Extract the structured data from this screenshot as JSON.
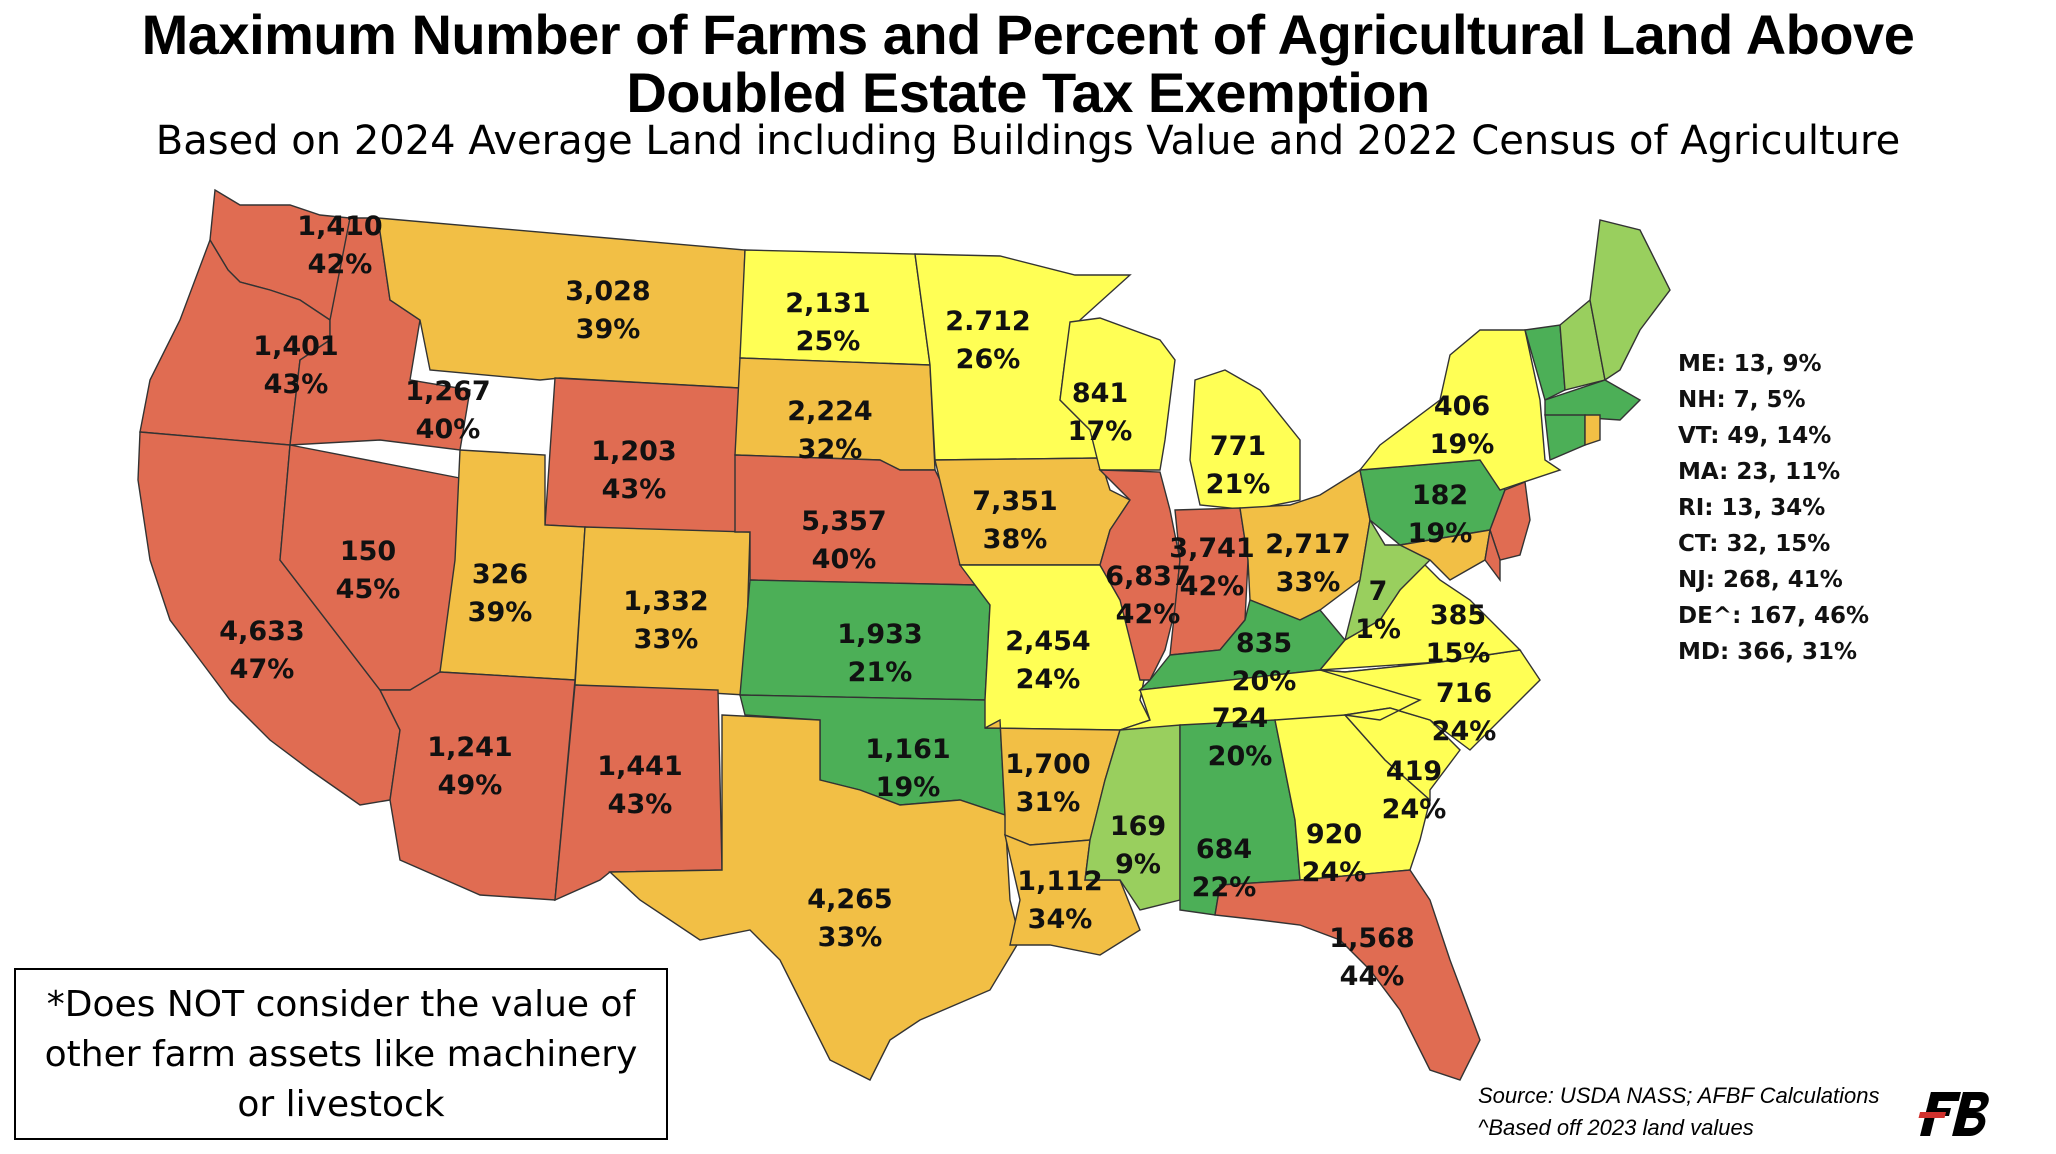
{
  "title_line1": "Maximum Number of Farms and Percent of Agricultural Land Above",
  "title_line2": "Doubled Estate Tax Exemption",
  "subtitle": "Based on 2024 Average Land including Buildings Value and 2022 Census of Agriculture",
  "colors": {
    "red": "#e06c52",
    "orange": "#f2bf45",
    "yellow": "#ffff55",
    "dark_green": "#4caf57",
    "light_green": "#99cf5e"
  },
  "states": [
    {
      "id": "WA",
      "farms": "1,410",
      "pct": "42%",
      "color": "red"
    },
    {
      "id": "OR",
      "farms": "1,401",
      "pct": "43%",
      "color": "red"
    },
    {
      "id": "CA",
      "farms": "4,633",
      "pct": "47%",
      "color": "red"
    },
    {
      "id": "NV",
      "farms": "150",
      "pct": "45%",
      "color": "red"
    },
    {
      "id": "ID",
      "farms": "1,267",
      "pct": "40%",
      "color": "red"
    },
    {
      "id": "MT",
      "farms": "3,028",
      "pct": "39%",
      "color": "orange"
    },
    {
      "id": "WY",
      "farms": "1,203",
      "pct": "43%",
      "color": "red"
    },
    {
      "id": "UT",
      "farms": "326",
      "pct": "39%",
      "color": "orange"
    },
    {
      "id": "CO",
      "farms": "1,332",
      "pct": "33%",
      "color": "orange"
    },
    {
      "id": "AZ",
      "farms": "1,241",
      "pct": "49%",
      "color": "red"
    },
    {
      "id": "NM",
      "farms": "1,441",
      "pct": "43%",
      "color": "red"
    },
    {
      "id": "ND",
      "farms": "2,131",
      "pct": "25%",
      "color": "yellow"
    },
    {
      "id": "SD",
      "farms": "2,224",
      "pct": "32%",
      "color": "orange"
    },
    {
      "id": "NE",
      "farms": "5,357",
      "pct": "40%",
      "color": "red"
    },
    {
      "id": "KS",
      "farms": "1,933",
      "pct": "21%",
      "color": "dark_green"
    },
    {
      "id": "OK",
      "farms": "1,161",
      "pct": "19%",
      "color": "dark_green"
    },
    {
      "id": "TX",
      "farms": "4,265",
      "pct": "33%",
      "color": "orange"
    },
    {
      "id": "MN",
      "farms": "2.712",
      "pct": "26%",
      "color": "yellow"
    },
    {
      "id": "IA",
      "farms": "7,351",
      "pct": "38%",
      "color": "orange"
    },
    {
      "id": "MO",
      "farms": "2,454",
      "pct": "24%",
      "color": "yellow"
    },
    {
      "id": "AR",
      "farms": "1,700",
      "pct": "31%",
      "color": "orange"
    },
    {
      "id": "LA",
      "farms": "1,112",
      "pct": "34%",
      "color": "orange"
    },
    {
      "id": "WI",
      "farms": "841",
      "pct": "17%",
      "color": "yellow"
    },
    {
      "id": "IL",
      "farms": "6,837",
      "pct": "42%",
      "color": "red"
    },
    {
      "id": "MI",
      "farms": "771",
      "pct": "21%",
      "color": "yellow"
    },
    {
      "id": "IN",
      "farms": "3,741",
      "pct": "42%",
      "color": "red"
    },
    {
      "id": "OH",
      "farms": "2,717",
      "pct": "33%",
      "color": "orange"
    },
    {
      "id": "KY",
      "farms": "835",
      "pct": "20%",
      "color": "dark_green"
    },
    {
      "id": "TN",
      "farms": "724",
      "pct": "20%",
      "color": "yellow"
    },
    {
      "id": "MS",
      "farms": "169",
      "pct": "9%",
      "color": "light_green"
    },
    {
      "id": "AL",
      "farms": "684",
      "pct": "22%",
      "color": "dark_green"
    },
    {
      "id": "GA",
      "farms": "920",
      "pct": "24%",
      "color": "yellow"
    },
    {
      "id": "FL",
      "farms": "1,568",
      "pct": "44%",
      "color": "red"
    },
    {
      "id": "SC",
      "farms": "419",
      "pct": "24%",
      "color": "yellow"
    },
    {
      "id": "NC",
      "farms": "716",
      "pct": "24%",
      "color": "yellow"
    },
    {
      "id": "VA",
      "farms": "385",
      "pct": "15%",
      "color": "yellow"
    },
    {
      "id": "WV",
      "farms": "7",
      "pct": "1%",
      "color": "light_green"
    },
    {
      "id": "PA",
      "farms": "182",
      "pct": "19%",
      "color": "dark_green"
    },
    {
      "id": "NY",
      "farms": "406",
      "pct": "19%",
      "color": "yellow"
    },
    {
      "id": "NJ",
      "farms": "",
      "pct": "",
      "color": "red"
    },
    {
      "id": "MD",
      "farms": "",
      "pct": "",
      "color": "orange"
    },
    {
      "id": "DE",
      "farms": "",
      "pct": "",
      "color": "red"
    },
    {
      "id": "VT",
      "farms": "",
      "pct": "",
      "color": "dark_green"
    },
    {
      "id": "NH",
      "farms": "",
      "pct": "",
      "color": "light_green"
    },
    {
      "id": "ME",
      "farms": "",
      "pct": "",
      "color": "light_green"
    },
    {
      "id": "MA",
      "farms": "",
      "pct": "",
      "color": "dark_green"
    },
    {
      "id": "CT",
      "farms": "",
      "pct": "",
      "color": "dark_green"
    },
    {
      "id": "RI",
      "farms": "",
      "pct": "",
      "color": "orange"
    }
  ],
  "small_states": [
    "ME: 13, 9%",
    "NH: 7, 5%",
    "VT: 49, 14%",
    "MA: 23, 11%",
    "RI: 13, 34%",
    "CT: 32, 15%",
    "NJ: 268, 41%",
    "DE^: 167, 46%",
    "MD: 366, 31%"
  ],
  "note_line1": "*Does NOT consider the value of",
  "note_line2": "other farm assets like machinery",
  "note_line3": "or livestock",
  "source_line1": "Source: USDA NASS; AFBF Calculations",
  "source_line2": "^Based off 2023 land values",
  "logo_text": "FB"
}
